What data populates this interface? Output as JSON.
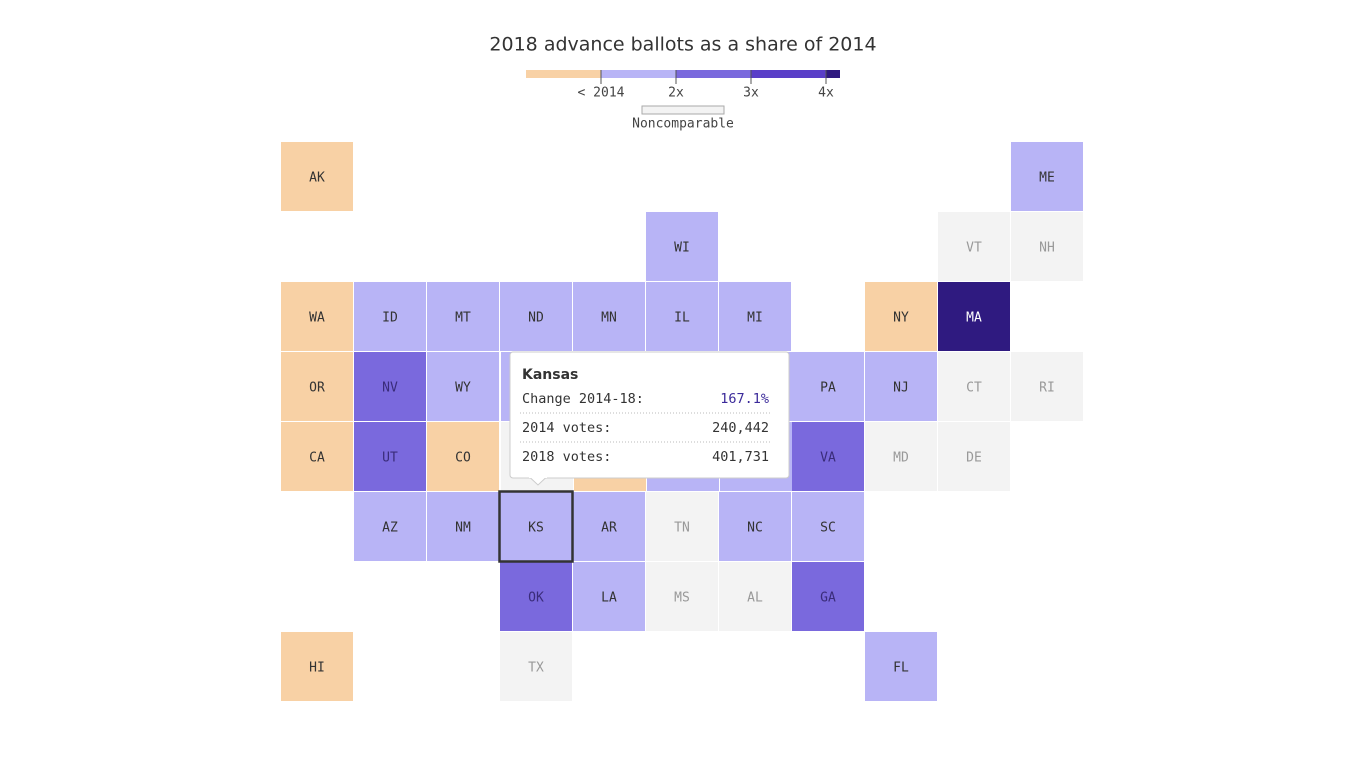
{
  "title": "2018 advance ballots as a share of 2014",
  "legend": {
    "colors": [
      "#f8d1a5",
      "#b8b4f6",
      "#7a69dd",
      "#5a3fc8",
      "#2f1a80"
    ],
    "labels": [
      "< 2014",
      "2x",
      "3x",
      "4x"
    ],
    "noncomparable": {
      "label": "Noncomparable",
      "color": "#f3f3f3"
    }
  },
  "tiles": [
    {
      "label": "AK",
      "color": "#f8d1a5"
    },
    {
      "label": "ME",
      "color": "#b8b4f6"
    },
    {
      "label": "WI",
      "color": "#b8b4f6"
    },
    {
      "label": "VT",
      "color": "#f3f3f3"
    },
    {
      "label": "NH",
      "color": "#f3f3f3"
    },
    {
      "label": "WA",
      "color": "#f8d1a5"
    },
    {
      "label": "ID",
      "color": "#b8b4f6"
    },
    {
      "label": "MT",
      "color": "#b8b4f6"
    },
    {
      "label": "ND",
      "color": "#b8b4f6"
    },
    {
      "label": "MN",
      "color": "#b8b4f6"
    },
    {
      "label": "IL",
      "color": "#b8b4f6"
    },
    {
      "label": "MI",
      "color": "#b8b4f6"
    },
    {
      "label": "NY",
      "color": "#f8d1a5"
    },
    {
      "label": "MA",
      "color": "#2f1a80"
    },
    {
      "label": "OR",
      "color": "#f8d1a5"
    },
    {
      "label": "NV",
      "color": "#7a69dd"
    },
    {
      "label": "WY",
      "color": "#b8b4f6"
    },
    {
      "label": "PA",
      "color": "#b8b4f6"
    },
    {
      "label": "NJ",
      "color": "#b8b4f6"
    },
    {
      "label": "CT",
      "color": "#f3f3f3"
    },
    {
      "label": "RI",
      "color": "#f3f3f3"
    },
    {
      "label": "CA",
      "color": "#f8d1a5"
    },
    {
      "label": "UT",
      "color": "#7a69dd"
    },
    {
      "label": "CO",
      "color": "#f8d1a5"
    },
    {
      "label": "VA",
      "color": "#7a69dd"
    },
    {
      "label": "MD",
      "color": "#f3f3f3"
    },
    {
      "label": "DE",
      "color": "#f3f3f3"
    },
    {
      "label": "AZ",
      "color": "#b8b4f6"
    },
    {
      "label": "NM",
      "color": "#b8b4f6"
    },
    {
      "label": "KS",
      "color": "#b8b4f6",
      "highlighted": true
    },
    {
      "label": "AR",
      "color": "#b8b4f6"
    },
    {
      "label": "TN",
      "color": "#f3f3f3"
    },
    {
      "label": "NC",
      "color": "#b8b4f6"
    },
    {
      "label": "SC",
      "color": "#b8b4f6"
    },
    {
      "label": "OK",
      "color": "#7a69dd"
    },
    {
      "label": "LA",
      "color": "#b8b4f6"
    },
    {
      "label": "MS",
      "color": "#f3f3f3"
    },
    {
      "label": "AL",
      "color": "#f3f3f3"
    },
    {
      "label": "GA",
      "color": "#7a69dd"
    },
    {
      "label": "HI",
      "color": "#f8d1a5"
    },
    {
      "label": "TX",
      "color": "#f3f3f3"
    },
    {
      "label": "FL",
      "color": "#b8b4f6"
    }
  ],
  "tooltip": {
    "title": "Kansas",
    "rows": [
      {
        "label": "Change 2014-18:",
        "value": "167.1%"
      },
      {
        "label": "2014 votes:",
        "value": "240,442"
      },
      {
        "label": "2018 votes:",
        "value": "401,731"
      }
    ]
  }
}
